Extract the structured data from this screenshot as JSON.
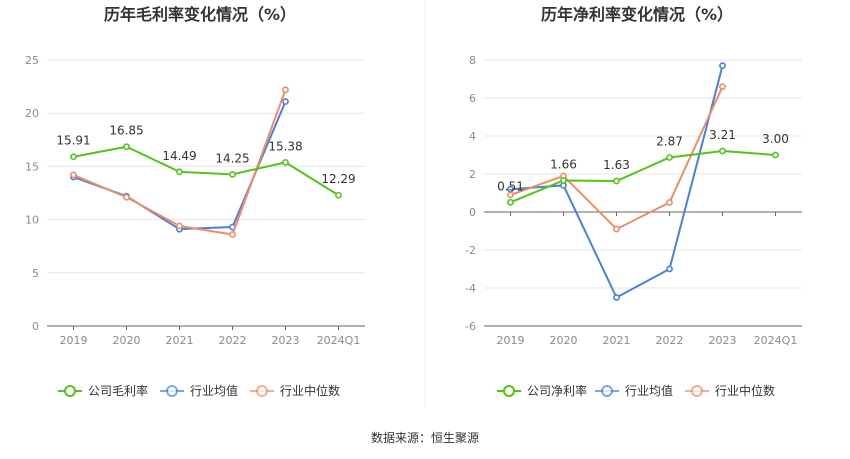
{
  "source": "数据来源：恒生聚源",
  "chart_data": [
    {
      "type": "line",
      "title": "历年毛利率变化情况（%）",
      "categories": [
        "2019",
        "2020",
        "2021",
        "2022",
        "2023",
        "2024Q1"
      ],
      "ylim": [
        0,
        25
      ],
      "yticks": [
        "0",
        "5",
        "10",
        "15",
        "20",
        "25"
      ],
      "grid": true,
      "legend": "bottom",
      "series": [
        {
          "name": "公司毛利率",
          "color": "#52c41a",
          "values": [
            15.91,
            16.85,
            14.49,
            14.25,
            15.38,
            12.29
          ],
          "labels": [
            "15.91",
            "16.85",
            "14.49",
            "14.25",
            "15.38",
            "12.29"
          ]
        },
        {
          "name": "行业均值",
          "color": "#4a7fe0",
          "values": [
            14.0,
            12.2,
            9.1,
            9.3,
            21.1,
            null
          ]
        },
        {
          "name": "行业中位数",
          "color": "#f08c64",
          "values": [
            14.2,
            12.1,
            9.4,
            8.6,
            22.2,
            null
          ]
        }
      ]
    },
    {
      "type": "line",
      "title": "历年净利率变化情况（%）",
      "categories": [
        "2019",
        "2020",
        "2021",
        "2022",
        "2023",
        "2024Q1"
      ],
      "ylim": [
        -6,
        8
      ],
      "yticks": [
        "-6",
        "-4",
        "-2",
        "0",
        "2",
        "4",
        "6",
        "8"
      ],
      "grid": true,
      "legend": "bottom",
      "series": [
        {
          "name": "公司净利率",
          "color": "#52c41a",
          "values": [
            0.51,
            1.66,
            1.63,
            2.87,
            3.21,
            3.0
          ],
          "labels": [
            "0.51",
            "1.66",
            "1.63",
            "2.87",
            "3.21",
            "3.00"
          ]
        },
        {
          "name": "行业均值",
          "color": "#4a7fe0",
          "values": [
            1.2,
            1.4,
            -4.5,
            -3.0,
            7.7,
            null
          ]
        },
        {
          "name": "行业中位数",
          "color": "#f08c64",
          "values": [
            0.9,
            1.9,
            -0.9,
            0.5,
            6.6,
            null
          ]
        }
      ]
    }
  ]
}
